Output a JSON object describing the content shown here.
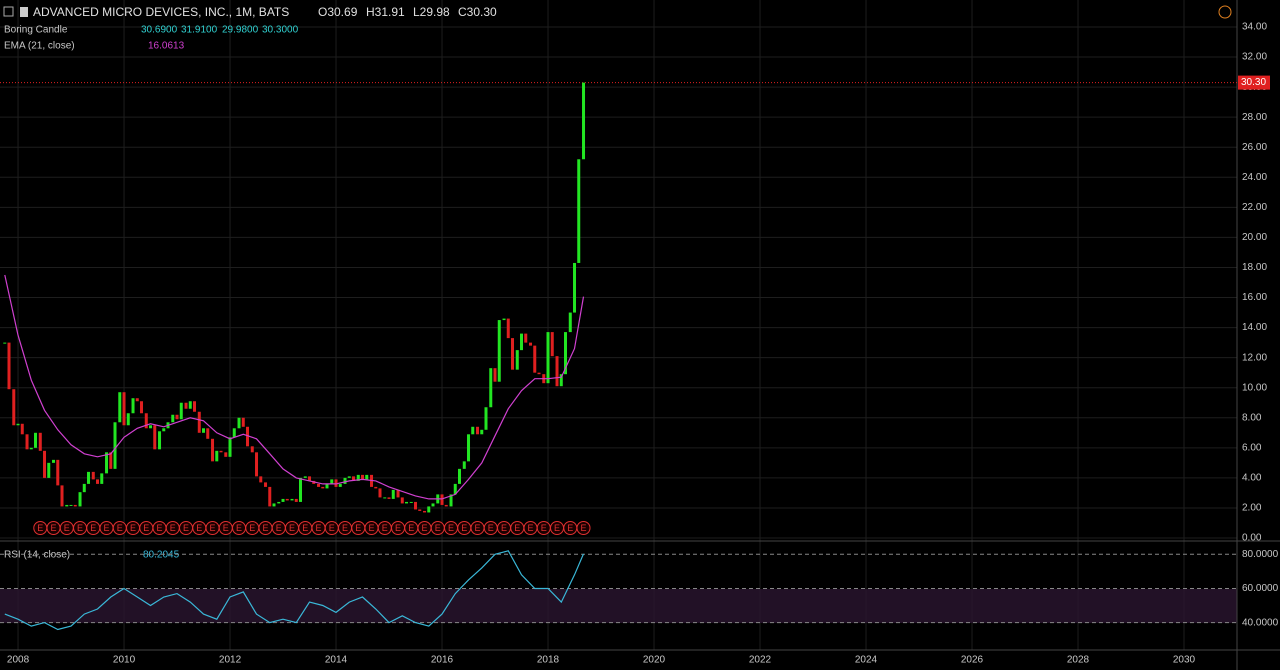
{
  "header": {
    "symbol": "ADVANCED MICRO DEVICES, INC., 1M, BATS",
    "open": "O30.69",
    "high": "H31.91",
    "low": "L29.98",
    "close": "C30.30",
    "study": "Boring Candle",
    "study_values": [
      "30.6900",
      "31.9100",
      "29.9800",
      "30.3000"
    ],
    "ema_label": "EMA (21, close)",
    "ema_value": "16.0613",
    "rsi_label": "RSI (14, close)",
    "rsi_value": "80.2045"
  },
  "chart_data": {
    "type": "candlestick",
    "xlim": [
      2007.66,
      2031
    ],
    "xticks": [
      2008,
      2010,
      2012,
      2014,
      2016,
      2018,
      2020,
      2022,
      2024,
      2026,
      2028,
      2030
    ],
    "ylim": [
      0,
      34
    ],
    "yticks": [
      {
        "value": 0,
        "label": "0.00"
      },
      {
        "value": 2,
        "label": "2.00"
      },
      {
        "value": 4,
        "label": "4.00"
      },
      {
        "value": 6,
        "label": "6.00"
      },
      {
        "value": 8,
        "label": "8.00"
      },
      {
        "value": 10,
        "label": "10.00"
      },
      {
        "value": 12,
        "label": "12.00"
      },
      {
        "value": 14,
        "label": "14.00"
      },
      {
        "value": 16,
        "label": "16.00"
      },
      {
        "value": 18,
        "label": "18.00"
      },
      {
        "value": 20,
        "label": "20.00"
      },
      {
        "value": 22,
        "label": "22.00"
      },
      {
        "value": 24,
        "label": "24.00"
      },
      {
        "value": 26,
        "label": "26.00"
      },
      {
        "value": 28,
        "label": "28.00"
      },
      {
        "value": 30,
        "label": "30.00"
      },
      {
        "value": 32,
        "label": "32.00"
      },
      {
        "value": 34,
        "label": "34.00"
      }
    ],
    "grid": true,
    "up_color": "#22e622",
    "down_color": "#e02020",
    "last_price": {
      "value": 30.3,
      "label": "30.30",
      "color": "#e02020"
    },
    "x": [
      2007.75,
      2007.83,
      2007.92,
      2008,
      2008.08,
      2008.17,
      2008.25,
      2008.33,
      2008.42,
      2008.5,
      2008.58,
      2008.67,
      2008.75,
      2008.83,
      2008.92,
      2009,
      2009.08,
      2009.17,
      2009.25,
      2009.33,
      2009.42,
      2009.5,
      2009.58,
      2009.67,
      2009.75,
      2009.83,
      2009.92,
      2010,
      2010.08,
      2010.17,
      2010.25,
      2010.33,
      2010.42,
      2010.5,
      2010.58,
      2010.67,
      2010.75,
      2010.83,
      2010.92,
      2011,
      2011.08,
      2011.17,
      2011.25,
      2011.33,
      2011.42,
      2011.5,
      2011.58,
      2011.67,
      2011.75,
      2011.83,
      2011.92,
      2012,
      2012.08,
      2012.17,
      2012.25,
      2012.33,
      2012.42,
      2012.5,
      2012.58,
      2012.67,
      2012.75,
      2012.83,
      2012.92,
      2013,
      2013.08,
      2013.17,
      2013.25,
      2013.33,
      2013.42,
      2013.5,
      2013.58,
      2013.67,
      2013.75,
      2013.83,
      2013.92,
      2014,
      2014.08,
      2014.17,
      2014.25,
      2014.33,
      2014.42,
      2014.5,
      2014.58,
      2014.67,
      2014.75,
      2014.83,
      2014.92,
      2015,
      2015.08,
      2015.17,
      2015.25,
      2015.33,
      2015.42,
      2015.5,
      2015.58,
      2015.67,
      2015.75,
      2015.83,
      2015.92,
      2016,
      2016.08,
      2016.17,
      2016.25,
      2016.33,
      2016.42,
      2016.5,
      2016.58,
      2016.67,
      2016.75,
      2016.83,
      2016.92,
      2017,
      2017.08,
      2017.17,
      2017.25,
      2017.33,
      2017.42,
      2017.5,
      2017.58,
      2017.67,
      2017.75,
      2017.83,
      2017.92,
      2018,
      2018.08,
      2018.17,
      2018.25,
      2018.33,
      2018.42,
      2018.5,
      2018.58,
      2018.67
    ],
    "close": [
      13.0,
      9.9,
      7.5,
      7.6,
      6.9,
      5.9,
      6.0,
      7.0,
      5.8,
      4.0,
      5.0,
      5.2,
      3.5,
      2.1,
      2.2,
      2.2,
      2.1,
      3.05,
      3.6,
      4.4,
      3.9,
      3.6,
      4.3,
      5.7,
      4.6,
      7.7,
      9.7,
      7.5,
      8.3,
      9.3,
      9.1,
      8.3,
      7.3,
      7.5,
      5.9,
      7.1,
      7.3,
      7.7,
      8.2,
      7.9,
      9.0,
      8.6,
      9.1,
      8.4,
      7.0,
      7.3,
      6.6,
      5.1,
      5.8,
      5.7,
      5.4,
      6.7,
      7.3,
      8.0,
      7.4,
      6.1,
      5.7,
      4.1,
      3.7,
      3.4,
      2.1,
      2.3,
      2.4,
      2.6,
      2.5,
      2.6,
      2.4,
      4.0,
      4.1,
      3.8,
      3.6,
      3.4,
      3.3,
      3.6,
      3.9,
      3.4,
      3.6,
      4.0,
      4.1,
      3.8,
      4.2,
      3.9,
      4.2,
      3.4,
      3.3,
      2.7,
      2.7,
      2.6,
      3.2,
      2.7,
      2.3,
      2.4,
      2.4,
      1.9,
      1.8,
      1.7,
      2.1,
      2.3,
      2.9,
      2.2,
      2.1,
      2.9,
      3.6,
      4.6,
      5.1,
      6.9,
      7.4,
      6.9,
      7.2,
      8.7,
      11.3,
      10.4,
      14.5,
      14.6,
      13.3,
      11.2,
      12.5,
      13.6,
      13.0,
      12.8,
      11.0,
      10.9,
      10.3,
      13.7,
      12.1,
      10.1,
      10.9,
      13.7,
      15.0,
      18.3,
      25.2,
      30.3
    ],
    "ema": {
      "color": "#d040d0",
      "x": [
        2007.75,
        2008,
        2008.25,
        2008.5,
        2008.75,
        2009,
        2009.25,
        2009.5,
        2009.75,
        2010,
        2010.25,
        2010.5,
        2010.75,
        2011,
        2011.25,
        2011.5,
        2011.75,
        2012,
        2012.25,
        2012.5,
        2012.75,
        2013,
        2013.25,
        2013.5,
        2013.75,
        2014,
        2014.25,
        2014.5,
        2014.75,
        2015,
        2015.25,
        2015.5,
        2015.75,
        2016,
        2016.25,
        2016.5,
        2016.75,
        2017,
        2017.25,
        2017.5,
        2017.75,
        2018,
        2018.25,
        2018.5,
        2018.67
      ],
      "values": [
        17.5,
        13.5,
        10.5,
        8.5,
        7.2,
        6.2,
        5.6,
        5.4,
        5.6,
        6.7,
        7.3,
        7.6,
        7.4,
        7.7,
        8.0,
        7.8,
        7.0,
        6.6,
        6.9,
        6.6,
        5.6,
        4.6,
        4.0,
        3.8,
        3.6,
        3.6,
        3.8,
        3.9,
        3.8,
        3.4,
        3.1,
        2.8,
        2.6,
        2.6,
        2.9,
        3.9,
        5.0,
        6.8,
        8.6,
        9.8,
        10.6,
        10.6,
        10.7,
        12.6,
        16.06
      ]
    },
    "earnings": {
      "label": "E",
      "color": "#e03030",
      "x": [
        2008.42,
        2008.67,
        2008.92,
        2009.17,
        2009.42,
        2009.67,
        2009.92,
        2010.17,
        2010.42,
        2010.67,
        2010.92,
        2011.17,
        2011.42,
        2011.67,
        2011.92,
        2012.17,
        2012.42,
        2012.67,
        2012.92,
        2013.17,
        2013.42,
        2013.67,
        2013.92,
        2014.17,
        2014.42,
        2014.67,
        2014.92,
        2015.17,
        2015.42,
        2015.67,
        2015.92,
        2016.17,
        2016.42,
        2016.67,
        2016.92,
        2017.17,
        2017.42,
        2017.67,
        2017.92,
        2018.17,
        2018.42,
        2018.67
      ]
    },
    "rsi": {
      "color": "#3ab8d8",
      "ylim": [
        24,
        86
      ],
      "yticks": [
        {
          "value": 80,
          "label": "80.0000"
        },
        {
          "value": 60,
          "label": "60.0000"
        },
        {
          "value": 40,
          "label": "40.0000"
        }
      ],
      "x": [
        2007.75,
        2008,
        2008.25,
        2008.5,
        2008.75,
        2009,
        2009.25,
        2009.5,
        2009.75,
        2010,
        2010.25,
        2010.5,
        2010.75,
        2011,
        2011.25,
        2011.5,
        2011.75,
        2012,
        2012.25,
        2012.5,
        2012.75,
        2013,
        2013.25,
        2013.5,
        2013.75,
        2014,
        2014.25,
        2014.5,
        2014.75,
        2015,
        2015.25,
        2015.5,
        2015.75,
        2016,
        2016.25,
        2016.5,
        2016.75,
        2017,
        2017.25,
        2017.5,
        2017.75,
        2018,
        2018.25,
        2018.5,
        2018.67
      ],
      "values": [
        45,
        42,
        38,
        40,
        36,
        38,
        45,
        48,
        55,
        60,
        55,
        50,
        55,
        57,
        52,
        45,
        42,
        55,
        58,
        45,
        40,
        42,
        40,
        52,
        50,
        46,
        52,
        55,
        48,
        40,
        44,
        40,
        38,
        45,
        57,
        65,
        72,
        80,
        82,
        68,
        60,
        60,
        52,
        68,
        80.2
      ]
    }
  }
}
